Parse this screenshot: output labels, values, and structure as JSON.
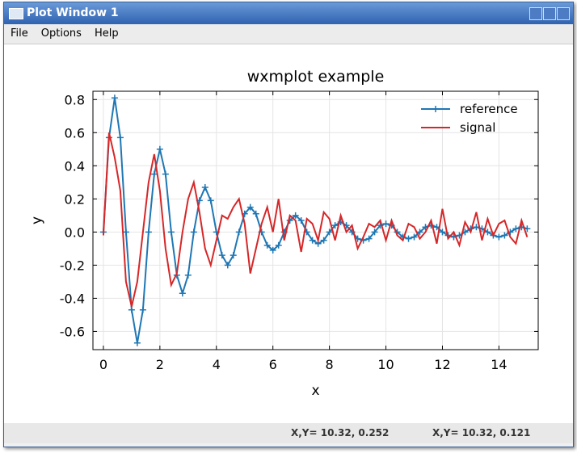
{
  "window": {
    "title": "Plot Window 1",
    "menu": [
      "File",
      "Options",
      "Help"
    ],
    "status": [
      "X,Y= 10.32, 0.252",
      "X,Y= 10.32, 0.121"
    ]
  },
  "chart_data": {
    "type": "line",
    "title": "wxmplot example",
    "x_label": "x",
    "y_label": "y",
    "x": [
      0,
      0.2,
      0.4,
      0.6,
      0.8,
      1.0,
      1.2,
      1.4,
      1.6,
      1.8,
      2.0,
      2.2,
      2.4,
      2.6,
      2.8,
      3.0,
      3.2,
      3.4,
      3.6,
      3.8,
      4.0,
      4.2,
      4.4,
      4.6,
      4.8,
      5.0,
      5.2,
      5.4,
      5.6,
      5.8,
      6.0,
      6.2,
      6.4,
      6.6,
      6.8,
      7.0,
      7.2,
      7.4,
      7.6,
      7.8,
      8.0,
      8.2,
      8.4,
      8.6,
      8.8,
      9.0,
      9.2,
      9.4,
      9.6,
      9.8,
      10.0,
      10.2,
      10.4,
      10.6,
      10.8,
      11.0,
      11.2,
      11.4,
      11.6,
      11.8,
      12.0,
      12.2,
      12.4,
      12.6,
      12.8,
      13.0,
      13.2,
      13.4,
      13.6,
      13.8,
      14.0,
      14.2,
      14.4,
      14.6,
      14.8,
      15.0
    ],
    "series": [
      {
        "name": "reference",
        "color": "#1f77b4",
        "marker": "+",
        "values": [
          0,
          0.57,
          0.81,
          0.57,
          0,
          -0.47,
          -0.67,
          -0.47,
          0,
          0.35,
          0.5,
          0.35,
          0,
          -0.26,
          -0.37,
          -0.26,
          0,
          0.19,
          0.27,
          0.19,
          0,
          -0.14,
          -0.2,
          -0.14,
          0,
          0.11,
          0.15,
          0.11,
          0,
          -0.08,
          -0.11,
          -0.08,
          0,
          0.07,
          0.1,
          0.07,
          0,
          -0.05,
          -0.07,
          -0.05,
          0,
          0.04,
          0.06,
          0.04,
          0,
          -0.04,
          -0.05,
          -0.04,
          0,
          0.04,
          0.05,
          0.04,
          0,
          -0.03,
          -0.04,
          -0.03,
          0,
          0.03,
          0.04,
          0.03,
          0,
          -0.02,
          -0.03,
          -0.02,
          0,
          0.02,
          0.03,
          0.02,
          0,
          -0.02,
          -0.03,
          -0.02,
          0,
          0.02,
          0.03,
          0.02
        ]
      },
      {
        "name": "signal",
        "color": "#d62728",
        "values": [
          -0.02,
          0.6,
          0.45,
          0.25,
          -0.3,
          -0.45,
          -0.3,
          0,
          0.3,
          0.47,
          0.25,
          -0.1,
          -0.32,
          -0.25,
          0,
          0.2,
          0.3,
          0.12,
          -0.1,
          -0.2,
          -0.05,
          0.1,
          0.08,
          0.15,
          0.2,
          0.05,
          -0.25,
          -0.1,
          0.05,
          0.15,
          0,
          0.2,
          -0.05,
          0.1,
          0.07,
          -0.12,
          0.08,
          0.05,
          -0.05,
          0.12,
          0.08,
          -0.05,
          0.1,
          0,
          0.04,
          -0.1,
          -0.03,
          0.05,
          0.03,
          0.07,
          -0.05,
          0.07,
          -0.02,
          -0.05,
          0.05,
          0.03,
          -0.04,
          0,
          0.07,
          -0.07,
          0.14,
          -0.04,
          0,
          -0.08,
          0.06,
          0,
          0.12,
          -0.05,
          0.08,
          -0.02,
          0.05,
          0.07,
          -0.03,
          -0.07,
          0.07,
          -0.03
        ]
      }
    ],
    "xlim": [
      -0.37,
      15.39
    ],
    "xticks": [
      0,
      2,
      4,
      6,
      8,
      10,
      12,
      14
    ],
    "ylim": [
      -0.71,
      0.85
    ],
    "yticks": [
      -0.6,
      -0.4,
      -0.2,
      {
        "value": 0,
        "label": "0.0"
      },
      0.2,
      0.4,
      0.6,
      0.8
    ],
    "grid": true,
    "legend": "upper right"
  }
}
